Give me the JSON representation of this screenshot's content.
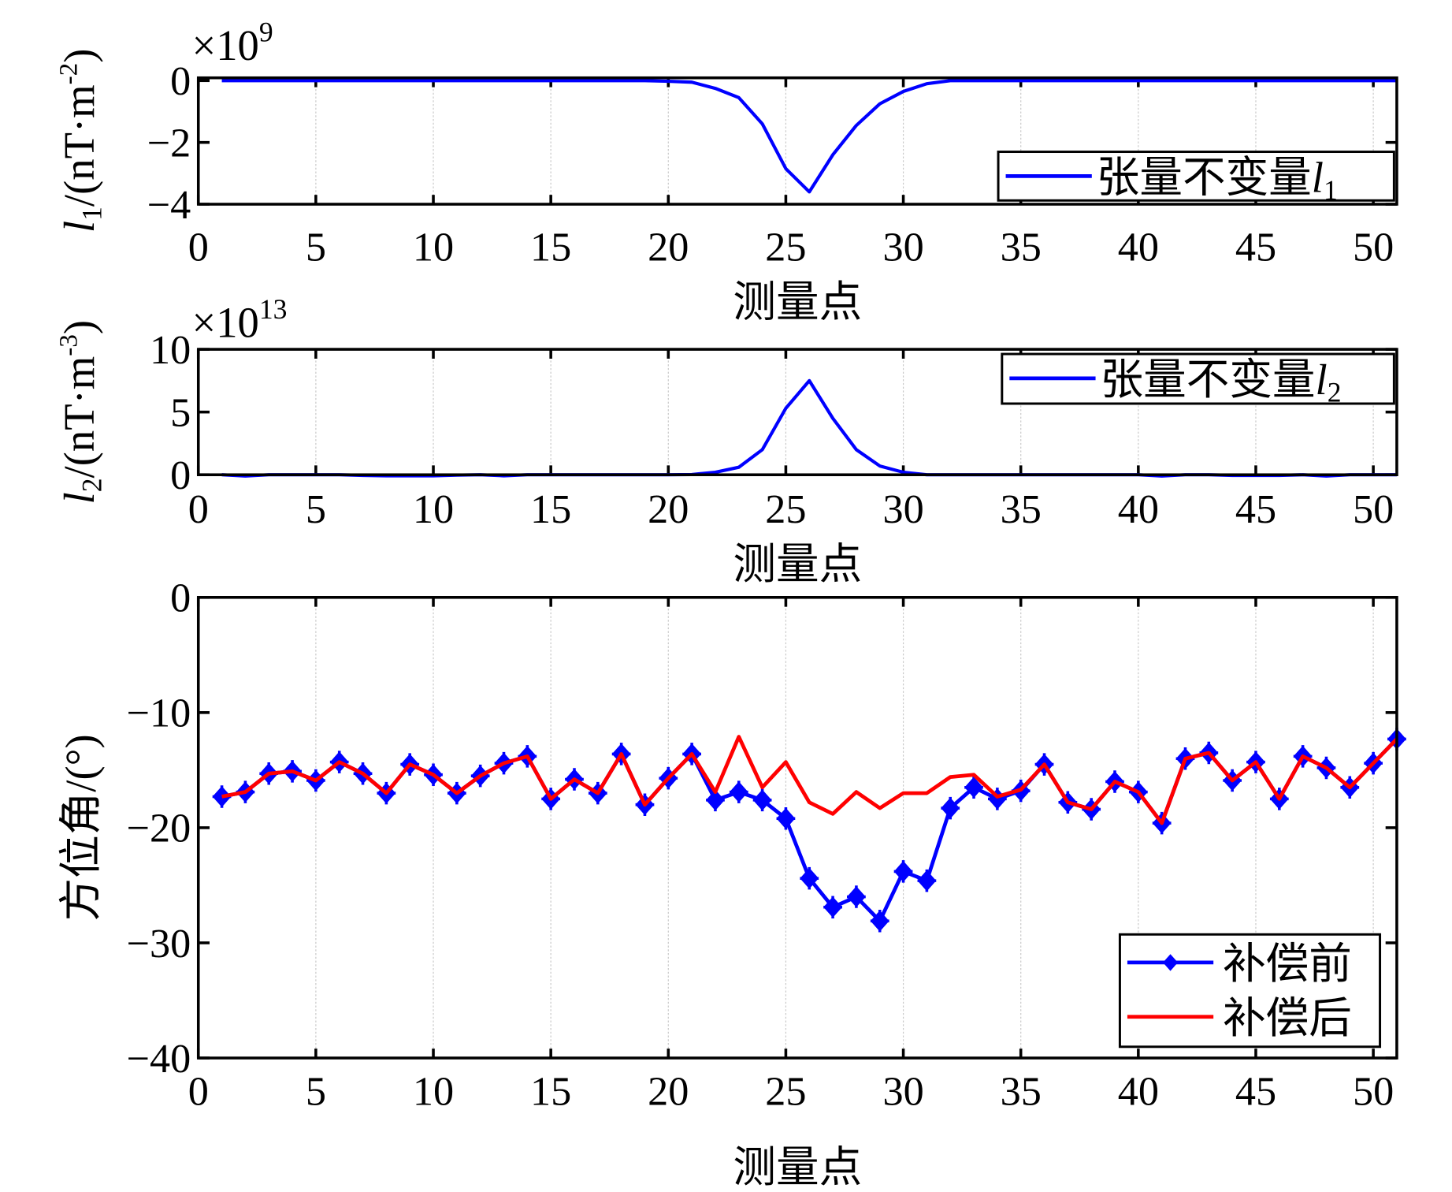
{
  "chart_data": [
    {
      "type": "line",
      "ylabel": "l1/(nT·m-2)",
      "ylabel_parts": {
        "sym": "l",
        "sub": "1",
        "unit": "/(nT·m",
        "sup": "-2",
        ")": ")"
      },
      "xlabel": "测量点",
      "exponent_base": "×10",
      "exponent": "9",
      "xlim": [
        0,
        51
      ],
      "ylim": [
        -4,
        0
      ],
      "xticks": [
        0,
        5,
        10,
        15,
        20,
        25,
        30,
        35,
        40,
        45,
        50
      ],
      "yticks": [
        0,
        -2,
        -4
      ],
      "ytick_labels": [
        "0",
        "−2",
        "−4"
      ],
      "grid": "x",
      "legend": "bottom-right",
      "series": [
        {
          "name": "张量不变量l1",
          "name_text": "张量不变量",
          "name_sym": "l",
          "name_sub": "1",
          "color": "#0000ff",
          "x": [
            1,
            2,
            3,
            4,
            5,
            6,
            7,
            8,
            9,
            10,
            11,
            12,
            13,
            14,
            15,
            16,
            17,
            18,
            19,
            20,
            21,
            22,
            23,
            24,
            25,
            26,
            27,
            28,
            29,
            30,
            31,
            32,
            33,
            34,
            35,
            36,
            37,
            38,
            39,
            40,
            41,
            42,
            43,
            44,
            45,
            46,
            47,
            48,
            49,
            50,
            51
          ],
          "y": [
            0,
            0,
            0,
            0,
            0,
            0,
            0,
            0,
            0,
            0,
            0,
            0,
            0,
            0,
            0,
            0,
            0,
            0,
            0,
            -0.02,
            -0.05,
            -0.25,
            -0.55,
            -1.4,
            -2.85,
            -3.6,
            -2.4,
            -1.45,
            -0.75,
            -0.35,
            -0.1,
            0,
            0,
            0,
            0,
            0,
            0,
            0,
            0,
            0,
            0,
            0,
            0,
            0,
            0,
            0,
            0,
            0,
            0,
            0,
            0
          ]
        }
      ]
    },
    {
      "type": "line",
      "ylabel": "l2/(nT·m-3)",
      "ylabel_parts": {
        "sym": "l",
        "sub": "2",
        "unit": "/(nT·m",
        "sup": "-3",
        ")": ")"
      },
      "xlabel": "测量点",
      "exponent_base": "×10",
      "exponent": "13",
      "xlim": [
        0,
        51
      ],
      "ylim": [
        0,
        10
      ],
      "xticks": [
        0,
        5,
        10,
        15,
        20,
        25,
        30,
        35,
        40,
        45,
        50
      ],
      "yticks": [
        10,
        5,
        0
      ],
      "ytick_labels": [
        "10",
        "5",
        "0"
      ],
      "grid": "x",
      "legend": "top-right",
      "series": [
        {
          "name": "张量不变量l2",
          "name_text": "张量不变量",
          "name_sym": "l",
          "name_sub": "2",
          "color": "#0000ff",
          "x": [
            1,
            2,
            3,
            4,
            5,
            6,
            7,
            8,
            9,
            10,
            11,
            12,
            13,
            14,
            15,
            16,
            17,
            18,
            19,
            20,
            21,
            22,
            23,
            24,
            25,
            26,
            27,
            28,
            29,
            30,
            31,
            32,
            33,
            34,
            35,
            36,
            37,
            38,
            39,
            40,
            41,
            42,
            43,
            44,
            45,
            46,
            47,
            48,
            49,
            50,
            51
          ],
          "y": [
            0,
            -0.1,
            0,
            0,
            0,
            0,
            -0.05,
            -0.08,
            -0.08,
            -0.08,
            -0.03,
            0,
            -0.08,
            0,
            0,
            0,
            0,
            0,
            0,
            0,
            0.02,
            0.2,
            0.6,
            2,
            5.3,
            7.5,
            4.5,
            2,
            0.7,
            0.2,
            0,
            0,
            0,
            0,
            0,
            0,
            0,
            0,
            0,
            0,
            -0.1,
            0,
            0,
            -0.05,
            -0.05,
            -0.05,
            0,
            -0.1,
            0,
            0,
            0
          ]
        }
      ]
    },
    {
      "type": "line",
      "ylabel": "方位角/(°)",
      "xlabel": "测量点",
      "xlim": [
        0,
        51
      ],
      "ylim": [
        -40,
        0
      ],
      "xticks": [
        0,
        5,
        10,
        15,
        20,
        25,
        30,
        35,
        40,
        45,
        50
      ],
      "yticks": [
        0,
        -10,
        -20,
        -30,
        -40
      ],
      "ytick_labels": [
        "0",
        "−10",
        "−20",
        "−30",
        "−40"
      ],
      "grid": "x",
      "legend": "bottom-right",
      "series": [
        {
          "name": "补偿前",
          "color": "#0000ff",
          "marker": "diamond-plus",
          "x": [
            1,
            2,
            3,
            4,
            5,
            6,
            7,
            8,
            9,
            10,
            11,
            12,
            13,
            14,
            15,
            16,
            17,
            18,
            19,
            20,
            21,
            22,
            23,
            24,
            25,
            26,
            27,
            28,
            29,
            30,
            31,
            32,
            33,
            34,
            35,
            36,
            37,
            38,
            39,
            40,
            41,
            42,
            43,
            44,
            45,
            46,
            47,
            48,
            49,
            50,
            51
          ],
          "y": [
            -17.3,
            -16.9,
            -15.3,
            -15.1,
            -15.9,
            -14.3,
            -15.3,
            -17,
            -14.5,
            -15.4,
            -17,
            -15.5,
            -14.4,
            -13.8,
            -17.5,
            -15.8,
            -17,
            -13.6,
            -18,
            -15.7,
            -13.6,
            -17.6,
            -16.9,
            -17.6,
            -19.2,
            -24.4,
            -26.9,
            -26,
            -28.1,
            -23.8,
            -24.6,
            -18.3,
            -16.5,
            -17.5,
            -16.8,
            -14.5,
            -17.8,
            -18.4,
            -16,
            -16.9,
            -19.6,
            -14,
            -13.5,
            -15.9,
            -14.3,
            -17.5,
            -13.8,
            -14.8,
            -16.5,
            -14.4,
            -12.3
          ]
        },
        {
          "name": "补偿后",
          "color": "#ff0000",
          "x": [
            1,
            2,
            3,
            4,
            5,
            6,
            7,
            8,
            9,
            10,
            11,
            12,
            13,
            14,
            15,
            16,
            17,
            18,
            19,
            20,
            21,
            22,
            23,
            24,
            25,
            26,
            27,
            28,
            29,
            30,
            31,
            32,
            33,
            34,
            35,
            36,
            37,
            38,
            39,
            40,
            41,
            42,
            43,
            44,
            45,
            46,
            47,
            48,
            49,
            50,
            51
          ],
          "y": [
            -17.3,
            -16.9,
            -15.3,
            -15.1,
            -15.9,
            -14.3,
            -15.3,
            -17,
            -14.5,
            -15.4,
            -17,
            -15.5,
            -14.4,
            -13.8,
            -17.5,
            -15.8,
            -17,
            -13.6,
            -18,
            -15.7,
            -13.6,
            -16.9,
            -12.1,
            -16.5,
            -14.3,
            -17.8,
            -18.8,
            -16.9,
            -18.3,
            -17,
            -17,
            -15.6,
            -15.4,
            -17.3,
            -16.7,
            -14.5,
            -17.8,
            -18.4,
            -16,
            -16.9,
            -19.6,
            -14,
            -13.5,
            -15.9,
            -14.3,
            -17.5,
            -13.8,
            -14.8,
            -16.5,
            -14.4,
            -12.3
          ]
        }
      ]
    }
  ]
}
